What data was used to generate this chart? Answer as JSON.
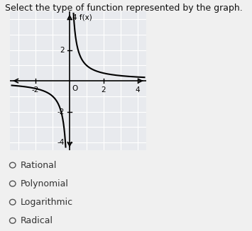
{
  "title": "Select the type of function represented by the graph.",
  "graph_title": "f(x)",
  "xlim": [
    -3.5,
    4.5
  ],
  "ylim": [
    -4.5,
    4.5
  ],
  "curve_color": "#000000",
  "graph_bg": "#e8eaee",
  "grid_color": "#ffffff",
  "fig_bg": "#f0f0f0",
  "options": [
    "Rational",
    "Polynomial",
    "Logarithmic",
    "Radical"
  ],
  "option_fontsize": 9,
  "title_fontsize": 9
}
